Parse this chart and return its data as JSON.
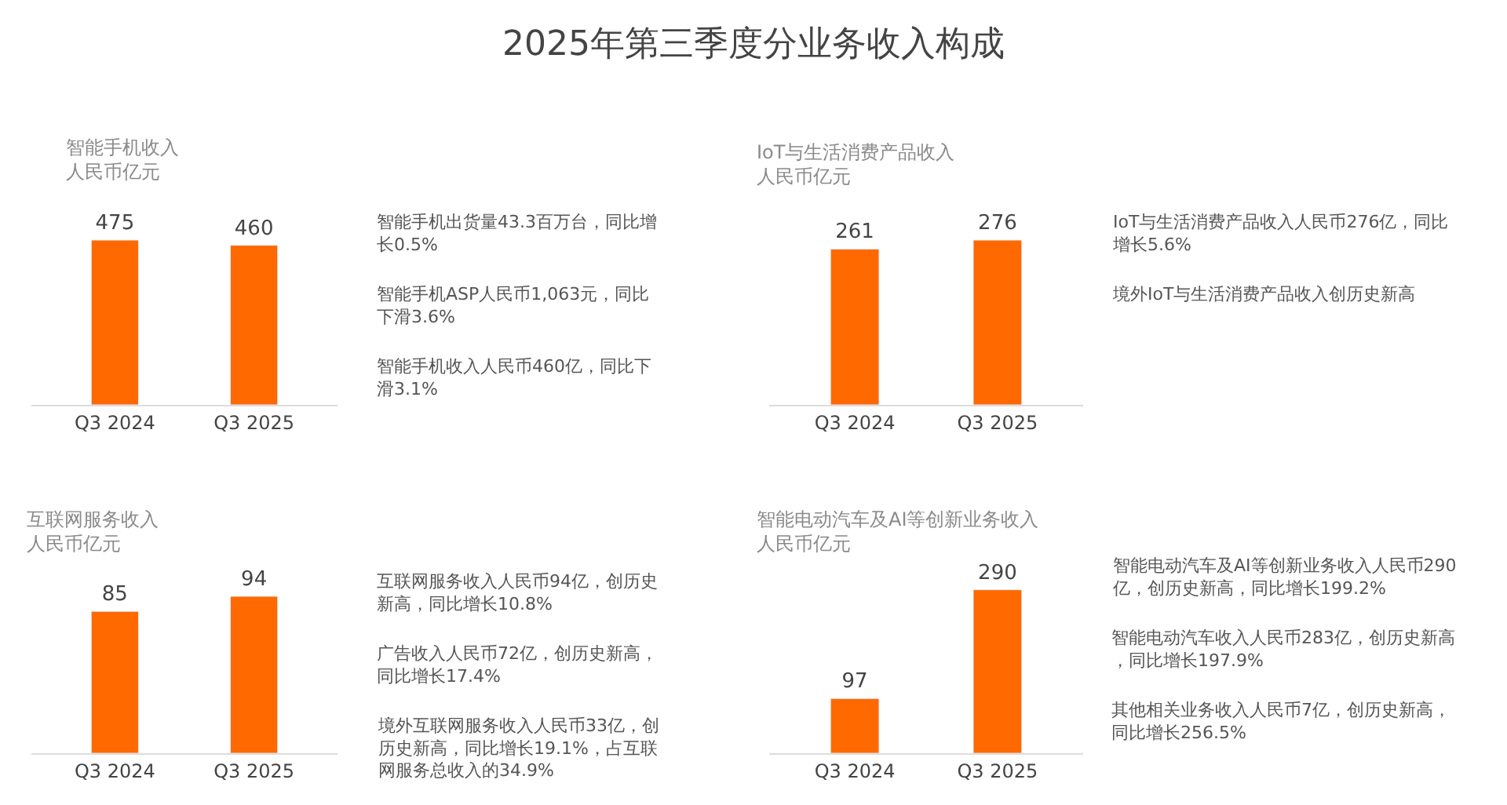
{
  "chart_data": [
    {
      "type": "other",
      "title": "2025年第三季度分业务收入构成"
    },
    {
      "type": "bar",
      "title": "智能手机收入",
      "subtitle": "人民币亿元",
      "categories": [
        "Q3 2024",
        "Q3 2025"
      ],
      "values": [
        475,
        460
      ],
      "color": "#ff6900",
      "data_labels": true,
      "annotations": [
        "智能手机出货量43.3百万台，同比增长0.5%",
        "智能手机ASP人民币1,063元，同比下滑3.6%",
        "智能手机收入人民币460亿，同比下滑3.1%"
      ]
    },
    {
      "type": "bar",
      "title": "IoT与生活消费产品收入",
      "subtitle": "人民币亿元",
      "categories": [
        "Q3 2024",
        "Q3 2025"
      ],
      "values": [
        261,
        276
      ],
      "color": "#ff6900",
      "data_labels": true,
      "annotations": [
        "IoT与生活消费产品收入人民币276亿，同比增长5.6%",
        "境外IoT与生活消费产品收入创历史新高"
      ]
    },
    {
      "type": "bar",
      "title": "互联网服务收入",
      "subtitle": "人民币亿元",
      "categories": [
        "Q3 2024",
        "Q3 2025"
      ],
      "values": [
        85,
        94
      ],
      "color": "#ff6900",
      "data_labels": true,
      "annotations": [
        "互联网服务收入人民币94亿，创历史新高，同比增长10.8%",
        "广告收入人民币72亿，创历史新高，同比增长17.4%",
        "境外互联网服务收入人民币33亿，创历史新高，同比增长19.1%，占互联网服务总收入的34.9%"
      ]
    },
    {
      "type": "bar",
      "title": "智能电动汽车及AI等创新业务收入",
      "subtitle": "人民币亿元",
      "categories": [
        "Q3 2024",
        "Q3 2025"
      ],
      "values": [
        97,
        290
      ],
      "color": "#ff6900",
      "data_labels": true,
      "annotations": [
        "智能电动汽车及AI等创新业务收入人民币290亿，创历史新高，同比增长199.2%",
        "智能电动汽车收入人民币283亿，创历史新高，同比增长197.9%",
        "其他相关业务收入人民币7亿，创历史新高，同比增长256.5%"
      ]
    }
  ]
}
